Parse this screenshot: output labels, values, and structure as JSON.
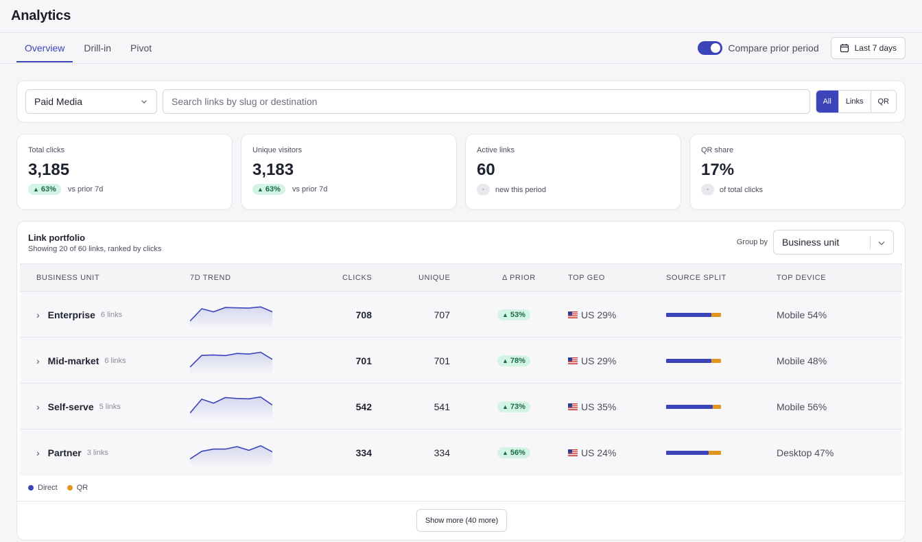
{
  "app": {
    "title": "Analytics"
  },
  "tabs": [
    {
      "label": "Overview",
      "active": true
    },
    {
      "label": "Drill-in",
      "active": false
    },
    {
      "label": "Pivot",
      "active": false
    }
  ],
  "compare": {
    "label": "Compare prior period",
    "enabled": true
  },
  "date_range": {
    "label": "Last 7 days",
    "icon": "calendar-icon"
  },
  "filters": {
    "channel_select": "Paid Media",
    "search_placeholder": "Search links by slug or destination",
    "segments": [
      {
        "label": "All",
        "active": true
      },
      {
        "label": "Links",
        "active": false
      },
      {
        "label": "QR",
        "active": false
      }
    ]
  },
  "stats": [
    {
      "label": "Total clicks",
      "value": "3,185",
      "badge": "63%",
      "badge_type": "up",
      "note": "vs prior 7d"
    },
    {
      "label": "Unique visitors",
      "value": "3,183",
      "badge": "63%",
      "badge_type": "up",
      "note": "vs prior 7d"
    },
    {
      "label": "Active links",
      "value": "60",
      "badge": "-",
      "badge_type": "neutral",
      "note": "new this period"
    },
    {
      "label": "QR share",
      "value": "17%",
      "badge": "-",
      "badge_type": "neutral",
      "note": "of total clicks"
    }
  ],
  "portfolio": {
    "title": "Link portfolio",
    "subtitle": "Showing 20 of 60 links, ranked by clicks",
    "group_by_label": "Group by",
    "group_by_value": "Business unit",
    "columns": [
      "BUSINESS UNIT",
      "7D TREND",
      "CLICKS",
      "UNIQUE",
      "Δ PRIOR",
      "TOP GEO",
      "SOURCE SPLIT",
      "TOP DEVICE"
    ],
    "rows": [
      {
        "name": "Enterprise",
        "links": "6 links",
        "clicks": "708",
        "unique": "707",
        "delta": "53%",
        "geo": "US 29%",
        "direct_share": 0.82,
        "device": "Mobile 54%",
        "trend": [
          2,
          6,
          5,
          6.4,
          6.3,
          6.2,
          6.6,
          5
        ]
      },
      {
        "name": "Mid-market",
        "links": "6 links",
        "clicks": "701",
        "unique": "701",
        "delta": "78%",
        "geo": "US 29%",
        "direct_share": 0.82,
        "device": "Mobile 48%",
        "trend": [
          2,
          5.8,
          5.9,
          5.7,
          6.4,
          6.2,
          6.8,
          4.5
        ]
      },
      {
        "name": "Self-serve",
        "links": "5 links",
        "clicks": "542",
        "unique": "541",
        "delta": "73%",
        "geo": "US 35%",
        "direct_share": 0.85,
        "device": "Mobile 56%",
        "trend": [
          2,
          6.5,
          5.2,
          7,
          6.7,
          6.6,
          7.2,
          4.6
        ]
      },
      {
        "name": "Partner",
        "links": "3 links",
        "clicks": "334",
        "unique": "334",
        "delta": "56%",
        "geo": "US 24%",
        "direct_share": 0.78,
        "device": "Desktop 47%",
        "trend": [
          2,
          4.5,
          5.2,
          5.2,
          6,
          4.8,
          6.3,
          4.3
        ]
      }
    ],
    "legend": [
      {
        "label": "Direct",
        "color": "#3b44b8"
      },
      {
        "label": "QR",
        "color": "#e0961f"
      }
    ],
    "show_more_label": "Show more (40 more)"
  },
  "colors": {
    "accent": "#3b44b8",
    "qr": "#e0961f",
    "positive_bg": "#d3f4e4",
    "positive_text": "#1a6a46"
  }
}
